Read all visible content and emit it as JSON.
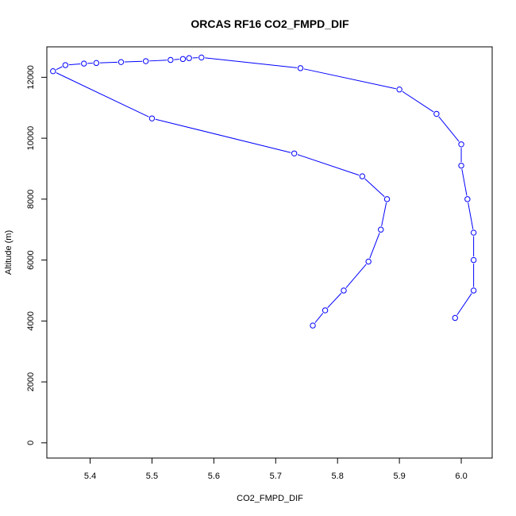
{
  "chart_data": {
    "type": "line",
    "title": "ORCAS RF16 CO2_FMPD_DIF",
    "xlabel": "CO2_FMPD_DIF",
    "ylabel": "Altitude (m)",
    "xlim": [
      5.33,
      6.05
    ],
    "ylim": [
      -500,
      13000
    ],
    "x_ticks": [
      "5.4",
      "5.5",
      "5.6",
      "5.7",
      "5.8",
      "5.9",
      "6.0"
    ],
    "y_ticks": [
      "0",
      "2000",
      "4000",
      "6000",
      "8000",
      "10000",
      "12000"
    ],
    "grid": false,
    "marker": "open-circle",
    "line_color": "#0000ff",
    "series": [
      {
        "x": [
          5.76,
          5.78,
          5.81,
          5.85,
          5.87,
          5.88,
          5.84,
          5.73,
          5.5,
          5.34,
          5.36,
          5.39,
          5.41,
          5.45,
          5.49,
          5.53,
          5.55,
          5.56,
          5.58,
          5.74,
          5.9,
          5.96,
          6.0,
          6.0,
          6.01,
          6.02,
          6.02,
          6.02,
          5.99
        ],
        "y": [
          3850,
          4350,
          5000,
          5950,
          7000,
          8000,
          8750,
          9500,
          10650,
          12200,
          12400,
          12450,
          12470,
          12500,
          12530,
          12570,
          12600,
          12630,
          12650,
          12300,
          11600,
          10800,
          9800,
          9100,
          8000,
          6900,
          6000,
          5000,
          4100
        ]
      }
    ]
  }
}
